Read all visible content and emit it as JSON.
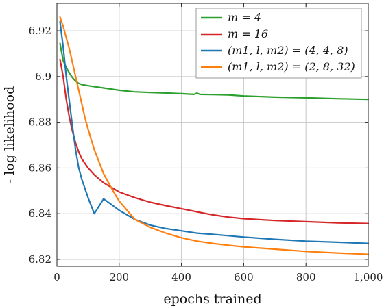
{
  "chart_data": {
    "type": "line",
    "title": "",
    "xlabel": "epochs trained",
    "ylabel": "- log likelihood",
    "xlim": [
      0,
      1000
    ],
    "ylim": [
      6.817,
      6.932
    ],
    "x_ticks": [
      0,
      200,
      400,
      600,
      800,
      1000
    ],
    "x_tick_labels": [
      "0",
      "200",
      "400",
      "600",
      "800",
      "1,000"
    ],
    "y_ticks": [
      6.82,
      6.84,
      6.86,
      6.88,
      6.9,
      6.92
    ],
    "y_tick_labels": [
      "6.82",
      "6.84",
      "6.86",
      "6.88",
      "6.9",
      "6.92"
    ],
    "grid": true,
    "legend_position": "top-right",
    "series": [
      {
        "name": "m = 4",
        "color": "#2ca02c",
        "x": [
          10,
          20,
          30,
          40,
          50,
          60,
          70,
          80,
          100,
          150,
          200,
          250,
          300,
          350,
          400,
          440,
          450,
          460,
          500,
          550,
          600,
          700,
          800,
          900,
          1000
        ],
        "y": [
          6.9145,
          6.907,
          6.904,
          6.9015,
          6.8995,
          6.898,
          6.897,
          6.8965,
          6.896,
          6.895,
          6.894,
          6.8933,
          6.893,
          6.8928,
          6.8925,
          6.8922,
          6.8927,
          6.8922,
          6.8921,
          6.892,
          6.8915,
          6.891,
          6.8907,
          6.8903,
          6.89
        ]
      },
      {
        "name": "m = 16",
        "color": "#d62728",
        "x": [
          10,
          20,
          30,
          40,
          50,
          60,
          70,
          80,
          100,
          120,
          150,
          200,
          250,
          300,
          350,
          400,
          450,
          500,
          550,
          600,
          700,
          800,
          900,
          1000
        ],
        "y": [
          6.9075,
          6.9,
          6.89,
          6.882,
          6.876,
          6.871,
          6.867,
          6.864,
          6.86,
          6.857,
          6.8535,
          6.8495,
          6.847,
          6.845,
          6.8435,
          6.8422,
          6.8408,
          6.8395,
          6.8385,
          6.8378,
          6.837,
          6.8365,
          6.836,
          6.8357
        ]
      },
      {
        "name": "(m1, l, m2) = (4, 4, 8)",
        "color": "#1f77b4",
        "x": [
          10,
          20,
          30,
          40,
          50,
          60,
          70,
          80,
          90,
          100,
          120,
          150,
          180,
          200,
          250,
          300,
          350,
          400,
          450,
          500,
          600,
          700,
          800,
          900,
          1000
        ],
        "y": [
          6.924,
          6.913,
          6.9,
          6.889,
          6.878,
          6.868,
          6.86,
          6.855,
          6.851,
          6.847,
          6.84,
          6.8465,
          6.8435,
          6.8415,
          6.8375,
          6.835,
          6.8335,
          6.8325,
          6.8315,
          6.831,
          6.8298,
          6.8288,
          6.828,
          6.8275,
          6.827
        ]
      },
      {
        "name": "(m1, l, m2) = (2, 8, 32)",
        "color": "#ff7f0e",
        "x": [
          10,
          20,
          30,
          40,
          50,
          60,
          70,
          80,
          90,
          100,
          120,
          150,
          180,
          200,
          250,
          300,
          350,
          400,
          450,
          500,
          550,
          600,
          700,
          800,
          900,
          1000
        ],
        "y": [
          6.926,
          6.922,
          6.917,
          6.912,
          6.906,
          6.9,
          6.894,
          6.888,
          6.882,
          6.877,
          6.868,
          6.8575,
          6.85,
          6.8455,
          6.8375,
          6.834,
          6.8315,
          6.8295,
          6.828,
          6.827,
          6.8262,
          6.8255,
          6.8245,
          6.8235,
          6.8228,
          6.8222
        ]
      }
    ]
  }
}
